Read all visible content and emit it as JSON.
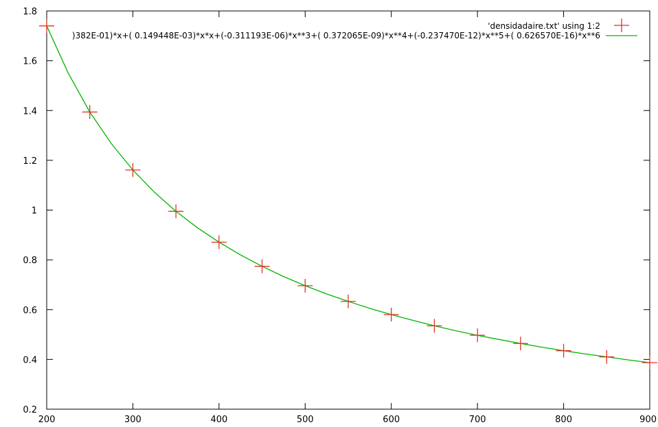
{
  "chart_data": {
    "type": "scatter",
    "xlim": [
      200,
      900
    ],
    "ylim": [
      0.2,
      1.8
    ],
    "x_ticks": [
      200,
      300,
      400,
      500,
      600,
      700,
      800,
      900
    ],
    "y_ticks": [
      0.2,
      0.4,
      0.6,
      0.8,
      1,
      1.2,
      1.4,
      1.6,
      1.8
    ],
    "x_tick_labels": [
      "200",
      "300",
      "400",
      "500",
      "600",
      "700",
      "800",
      "900"
    ],
    "y_tick_labels": [
      "0.2",
      "0.4",
      "0.6",
      "0.8",
      "1",
      "1.2",
      "1.4",
      "1.6",
      "1.8"
    ],
    "grid": false,
    "legend_position": "top-right",
    "series": [
      {
        "name": "'densidadaire.txt'   using 1:2",
        "kind": "points",
        "marker": "plus",
        "color": "#e0301e",
        "x": [
          200,
          250,
          300,
          350,
          400,
          450,
          500,
          550,
          600,
          650,
          700,
          750,
          800,
          850,
          900
        ],
        "y": [
          1.74,
          1.394,
          1.161,
          0.995,
          0.871,
          0.774,
          0.696,
          0.633,
          0.58,
          0.535,
          0.497,
          0.464,
          0.435,
          0.41,
          0.387
        ]
      },
      {
        "name": ")382E-01)*x+( 0.149448E-03)*x*x+(-0.311193E-06)*x**3+( 0.372065E-09)*x**4+(-0.237470E-12)*x**5+( 0.626570E-16)*x**6",
        "kind": "line",
        "color": "#00b400",
        "x": [
          200,
          225,
          250,
          275,
          300,
          325,
          350,
          375,
          400,
          425,
          450,
          475,
          500,
          525,
          550,
          575,
          600,
          625,
          650,
          675,
          700,
          725,
          750,
          775,
          800,
          825,
          850,
          875,
          900
        ],
        "y": [
          1.74,
          1.55,
          1.394,
          1.267,
          1.161,
          1.072,
          0.995,
          0.929,
          0.871,
          0.82,
          0.774,
          0.733,
          0.696,
          0.663,
          0.633,
          0.605,
          0.58,
          0.557,
          0.535,
          0.515,
          0.497,
          0.48,
          0.464,
          0.449,
          0.435,
          0.422,
          0.41,
          0.398,
          0.387
        ]
      }
    ]
  }
}
